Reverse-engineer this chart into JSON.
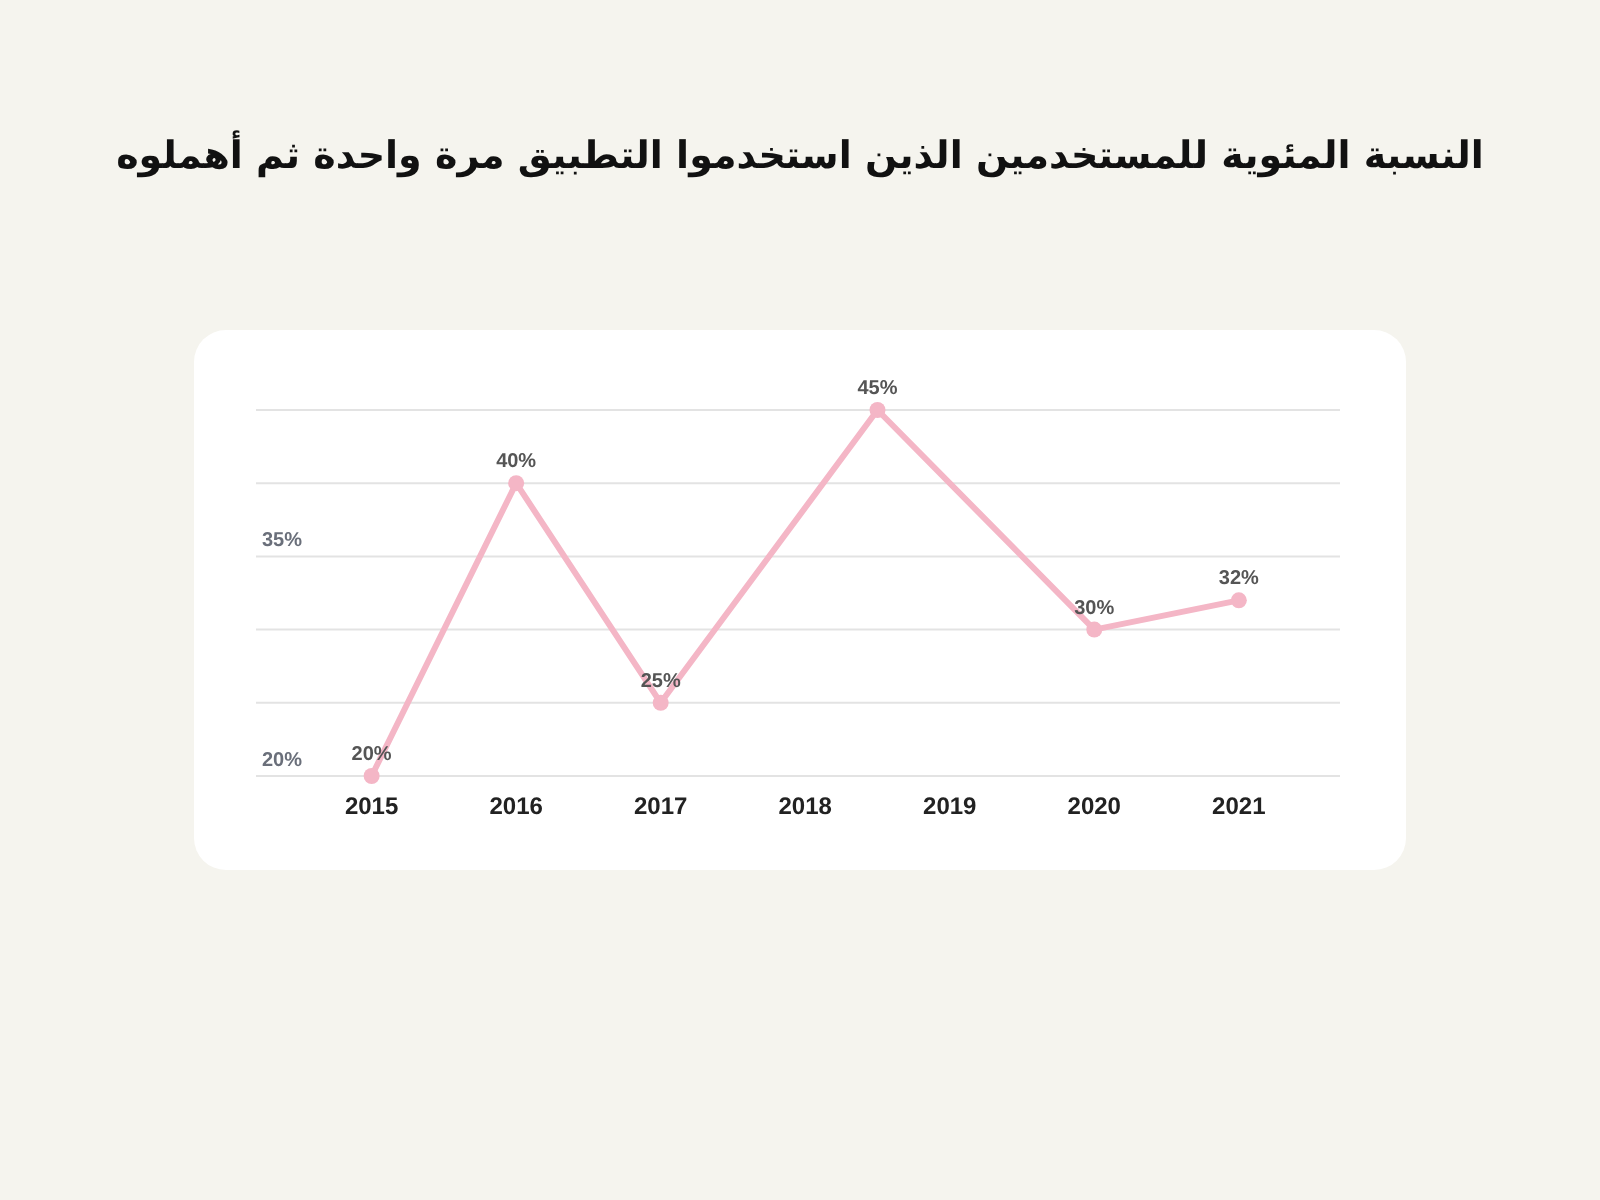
{
  "chart_data": {
    "type": "line",
    "title": "النسبة المئوية للمستخدمين الذين استخدموا التطبيق مرة واحدة ثم أهملوه",
    "x": [
      2015,
      2016,
      2017,
      2018.5,
      2020,
      2021
    ],
    "xlim": [
      2014.2,
      2021.7
    ],
    "xticks": [
      2015,
      2016,
      2017,
      2018,
      2019,
      2020,
      2021
    ],
    "ylim": [
      20,
      45
    ],
    "yticks": [
      {
        "value": 20,
        "label": "20%"
      },
      {
        "value": 25,
        "label": null
      },
      {
        "value": 30,
        "label": null
      },
      {
        "value": 35,
        "label": "35%"
      },
      {
        "value": 40,
        "label": null
      },
      {
        "value": 45,
        "label": null
      }
    ],
    "series": [
      {
        "color": "#f4b6c6",
        "values": [
          20,
          40,
          25,
          45,
          30,
          32
        ],
        "value_labels": [
          "20%",
          "40%",
          "25%",
          "45%",
          "30%",
          "32%"
        ]
      }
    ],
    "grid": "y",
    "marker": "circle",
    "line_style": "solid"
  }
}
